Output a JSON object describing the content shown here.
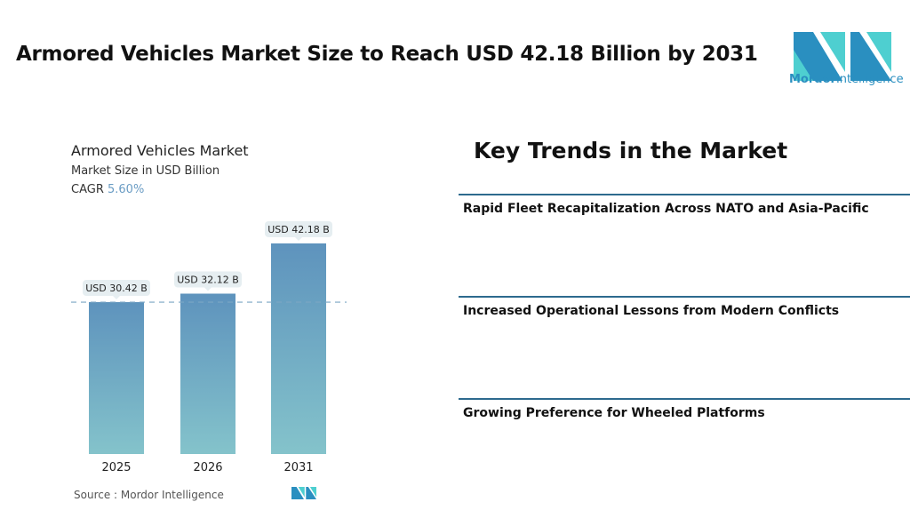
{
  "title": "Armored Vehicles Market Size to Reach USD 42.18 Billion by 2031",
  "logo": {
    "brand": "Mordor",
    "brand2": "Intelligence"
  },
  "chart_data": {
    "type": "bar",
    "title": "Armored Vehicles Market",
    "subtitle": "Market Size in USD Billion",
    "cagr_label": "CAGR",
    "cagr_value": "5.60%",
    "categories": [
      "2025",
      "2026",
      "2031"
    ],
    "values": [
      30.42,
      32.12,
      42.18
    ],
    "data_labels": [
      "USD 30.42 B",
      "USD 32.12 B",
      "USD 42.18 B"
    ],
    "ylim": [
      0,
      45
    ],
    "reference_line": 30.42,
    "colors": {
      "bar_top": "#5e93bd",
      "bar_bottom": "#84c3cb",
      "cagr": "#6a9cc4"
    },
    "source": "Source :  Mordor Intelligence"
  },
  "trends": {
    "heading": "Key Trends in the Market",
    "items": [
      "Rapid Fleet Recapitalization Across NATO and Asia-Pacific",
      "Increased Operational Lessons from Modern Conflicts",
      "Growing Preference for Wheeled Platforms"
    ]
  }
}
